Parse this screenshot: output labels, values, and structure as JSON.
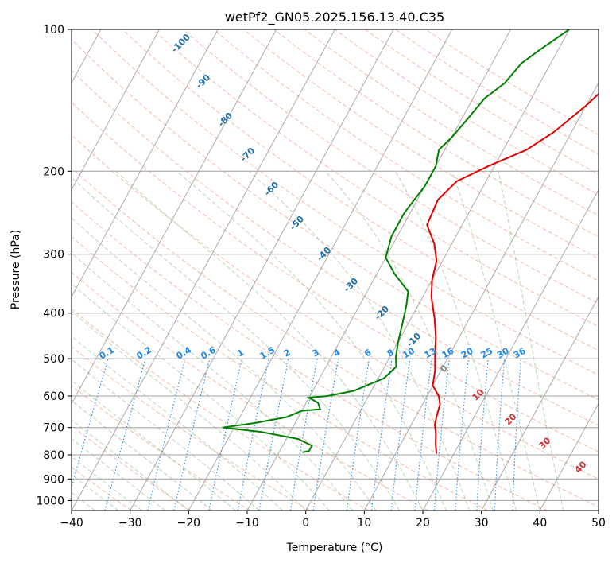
{
  "chart_data": {
    "type": "line",
    "title": "wetPf2_GN05.2025.156.13.40.C35",
    "xlabel": "Temperature (°C)",
    "ylabel": "Pressure (hPa)",
    "xlim": [
      -40,
      50
    ],
    "ylim": [
      1050,
      100
    ],
    "y_scale": "log",
    "x_ticks": [
      -40,
      -30,
      -20,
      -10,
      0,
      10,
      20,
      30,
      40,
      50
    ],
    "x_tick_labels": [
      "−40",
      "−30",
      "−20",
      "−10",
      "0",
      "10",
      "20",
      "30",
      "40",
      "50"
    ],
    "y_ticks": [
      100,
      200,
      300,
      400,
      500,
      600,
      700,
      800,
      900,
      1000
    ],
    "y_tick_labels": [
      "100",
      "200",
      "300",
      "400",
      "500",
      "600",
      "700",
      "800",
      "900",
      "1000"
    ],
    "grid": true,
    "skew": 45,
    "series": [
      {
        "role": "temperature",
        "color": "#e00000",
        "points": [
          [
            19,
            100
          ],
          [
            15,
            115
          ],
          [
            12,
            130
          ],
          [
            10,
            145
          ],
          [
            7,
            165
          ],
          [
            4,
            180
          ],
          [
            -1,
            195
          ],
          [
            -5,
            210
          ],
          [
            -6.5,
            230
          ],
          [
            -6,
            260
          ],
          [
            -3,
            285
          ],
          [
            -1,
            310
          ],
          [
            0,
            340
          ],
          [
            1.5,
            370
          ],
          [
            4,
            410
          ],
          [
            6,
            450
          ],
          [
            7.5,
            490
          ],
          [
            9,
            530
          ],
          [
            10,
            570
          ],
          [
            12,
            600
          ],
          [
            13,
            625
          ],
          [
            13.5,
            660
          ],
          [
            14,
            690
          ],
          [
            15,
            720
          ],
          [
            16,
            760
          ],
          [
            17,
            795
          ]
        ]
      },
      {
        "role": "dewpoint",
        "color": "#008000",
        "points": [
          [
            0,
            100
          ],
          [
            -3,
            110
          ],
          [
            -5,
            118
          ],
          [
            -6,
            130
          ],
          [
            -8,
            140
          ],
          [
            -9,
            155
          ],
          [
            -10,
            170
          ],
          [
            -11,
            180
          ],
          [
            -10,
            195
          ],
          [
            -10,
            215
          ],
          [
            -11,
            245
          ],
          [
            -11,
            275
          ],
          [
            -10,
            305
          ],
          [
            -7,
            330
          ],
          [
            -3,
            360
          ],
          [
            -2,
            385
          ],
          [
            -1,
            420
          ],
          [
            0,
            460
          ],
          [
            1,
            495
          ],
          [
            2,
            520
          ],
          [
            1,
            550
          ],
          [
            -3,
            585
          ],
          [
            -7,
            600
          ],
          [
            -10,
            605
          ],
          [
            -8,
            620
          ],
          [
            -7,
            640
          ],
          [
            -10,
            645
          ],
          [
            -12,
            665
          ],
          [
            -17,
            685
          ],
          [
            -22,
            700
          ],
          [
            -15,
            715
          ],
          [
            -8,
            740
          ],
          [
            -5,
            765
          ],
          [
            -5,
            785
          ],
          [
            -6,
            790
          ]
        ]
      }
    ],
    "mixing_ratio_labels": [
      "0.1",
      "0.2",
      "0.4",
      "0.6",
      "1",
      "1.5",
      "2",
      "3",
      "4",
      "6",
      "8",
      "10",
      "13",
      "16",
      "20",
      "25",
      "30",
      "36"
    ],
    "dry_adiabat_labels": [
      "-100",
      "-90",
      "-80",
      "-70",
      "-60",
      "-50",
      "-40",
      "-30",
      "-20",
      "-10",
      "0",
      "10",
      "20",
      "30",
      "40"
    ],
    "colors": {
      "temperature": "#e00000",
      "dewpoint": "#008000",
      "isotherm": "#888888",
      "dry_adiabat": "#f08060",
      "moist_adiabat": "#70b070",
      "mixing_ratio": "#1e88e5",
      "adiabat_label_cold": "#1f6fa8",
      "adiabat_label_warm": "#d03030"
    }
  }
}
